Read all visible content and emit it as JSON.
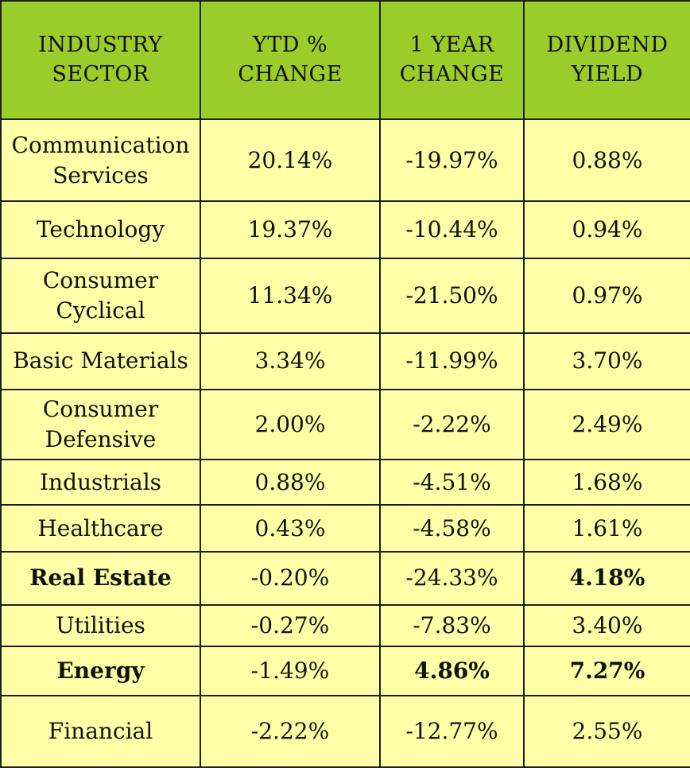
{
  "chart_data": {
    "type": "table",
    "columns": [
      "INDUSTRY SECTOR",
      "YTD % CHANGE",
      "1 YEAR CHANGE",
      "DIVIDEND YIELD"
    ],
    "header_lines": [
      [
        "INDUSTRY",
        "SECTOR"
      ],
      [
        "YTD %",
        "CHANGE"
      ],
      [
        "1 YEAR",
        "CHANGE"
      ],
      [
        "DIVIDEND",
        "YIELD"
      ]
    ],
    "rows": [
      {
        "cells": [
          [
            "Communication",
            "Services"
          ],
          "20.14%",
          "-19.97%",
          "0.88%"
        ],
        "bold": [
          false,
          false,
          false,
          false
        ]
      },
      {
        "cells": [
          [
            "Technology"
          ],
          "19.37%",
          "-10.44%",
          "0.94%"
        ],
        "bold": [
          false,
          false,
          false,
          false
        ]
      },
      {
        "cells": [
          [
            "Consumer",
            "Cyclical"
          ],
          "11.34%",
          "-21.50%",
          "0.97%"
        ],
        "bold": [
          false,
          false,
          false,
          false
        ]
      },
      {
        "cells": [
          [
            "Basic Materials"
          ],
          "3.34%",
          "-11.99%",
          "3.70%"
        ],
        "bold": [
          false,
          false,
          false,
          false
        ]
      },
      {
        "cells": [
          [
            "Consumer",
            "Defensive"
          ],
          "2.00%",
          "-2.22%",
          "2.49%"
        ],
        "bold": [
          false,
          false,
          false,
          false
        ]
      },
      {
        "cells": [
          [
            "Industrials"
          ],
          "0.88%",
          "-4.51%",
          "1.68%"
        ],
        "bold": [
          false,
          false,
          false,
          false
        ]
      },
      {
        "cells": [
          [
            "Healthcare"
          ],
          "0.43%",
          "-4.58%",
          "1.61%"
        ],
        "bold": [
          false,
          false,
          false,
          false
        ]
      },
      {
        "cells": [
          [
            "Real Estate"
          ],
          "-0.20%",
          "-24.33%",
          "4.18%"
        ],
        "bold": [
          true,
          false,
          false,
          true
        ]
      },
      {
        "cells": [
          [
            "Utilities"
          ],
          "-0.27%",
          "-7.83%",
          "3.40%"
        ],
        "bold": [
          false,
          false,
          false,
          false
        ]
      },
      {
        "cells": [
          [
            "Energy"
          ],
          "-1.49%",
          "4.86%",
          "7.27%"
        ],
        "bold": [
          true,
          false,
          true,
          true
        ]
      },
      {
        "cells": [
          [
            "Financial"
          ],
          "-2.22%",
          "-12.77%",
          "2.55%"
        ],
        "bold": [
          false,
          false,
          false,
          false
        ]
      }
    ],
    "colors": {
      "header_bg": "#9acd2a",
      "body_bg": "#ffffa8",
      "border": "#1e1e1e"
    }
  }
}
